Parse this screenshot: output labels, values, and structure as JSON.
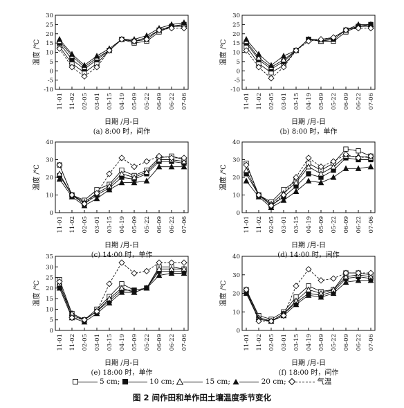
{
  "figure_title": "图 2   间作田和单作田土壤温度季节变化",
  "legend": [
    {
      "label": "5 cm;",
      "marker": "open-square"
    },
    {
      "label": "10 cm;",
      "marker": "filled-square"
    },
    {
      "label": "15 cm;",
      "marker": "open-triangle"
    },
    {
      "label": "20 cm;",
      "marker": "filled-triangle"
    },
    {
      "label": "气温",
      "marker": "open-diamond"
    }
  ],
  "chart_data": [
    {
      "type": "line",
      "caption": "(a)  8:00 时，间作",
      "xlabel": "日期 /月-日",
      "ylabel": "温度 /℃",
      "categories": [
        "11-01",
        "11-02",
        "02-05",
        "03-01",
        "03-15",
        "04-19",
        "05-09",
        "05-22",
        "06-09",
        "06-22",
        "07-06"
      ],
      "ylim": [
        -10,
        30
      ],
      "yticks": [
        -10,
        -5,
        0,
        5,
        10,
        15,
        20,
        25,
        30
      ],
      "series": [
        {
          "name": "5 cm",
          "values": [
            13,
            4,
            -1,
            4,
            11,
            17,
            15,
            16,
            21,
            24,
            24
          ]
        },
        {
          "name": "10 cm",
          "values": [
            15,
            6,
            1,
            6,
            11,
            17,
            16,
            17,
            22,
            24,
            25
          ]
        },
        {
          "name": "15 cm",
          "values": [
            16,
            8,
            2,
            7,
            11,
            17,
            16,
            18,
            22,
            24,
            25
          ]
        },
        {
          "name": "20 cm",
          "values": [
            17,
            9,
            3,
            8,
            12,
            17,
            17,
            19,
            23,
            25,
            26
          ]
        },
        {
          "name": "气温",
          "values": [
            12,
            2,
            -3,
            2,
            11,
            17,
            16,
            17,
            22,
            23,
            23
          ]
        }
      ]
    },
    {
      "type": "line",
      "caption": "(b)  8:00 时，单作",
      "xlabel": "日期 /月-日",
      "ylabel": "温度 /℃",
      "categories": [
        "11-01",
        "11-02",
        "02-05",
        "03-01",
        "03-15",
        "04-19",
        "05-09",
        "05-22",
        "06-09",
        "06-22",
        "07-06"
      ],
      "ylim": [
        -10,
        30
      ],
      "yticks": [
        -10,
        -5,
        0,
        5,
        10,
        15,
        20,
        25,
        30
      ],
      "series": [
        {
          "name": "5 cm",
          "values": [
            13,
            4,
            -1,
            3,
            11,
            17,
            16,
            16,
            21,
            24,
            24
          ]
        },
        {
          "name": "10 cm",
          "values": [
            15,
            6,
            1,
            5,
            11,
            17,
            16,
            17,
            22,
            24,
            25
          ]
        },
        {
          "name": "15 cm",
          "values": [
            16,
            7,
            2,
            6,
            11,
            17,
            16,
            18,
            22,
            24,
            25
          ]
        },
        {
          "name": "20 cm",
          "values": [
            17,
            9,
            3,
            8,
            11,
            17,
            17,
            18,
            22,
            25,
            25
          ]
        },
        {
          "name": "气温",
          "values": [
            11,
            2,
            -4,
            2,
            11,
            16,
            17,
            18,
            22,
            23,
            23
          ]
        }
      ]
    },
    {
      "type": "line",
      "caption": "(c)  14:00 时，单作",
      "xlabel": "日期 /月-日",
      "ylabel": "温度 /℃",
      "categories": [
        "11-01",
        "11-02",
        "02-05",
        "03-01",
        "03-15",
        "04-19",
        "05-09",
        "05-22",
        "06-09",
        "06-22",
        "07-06"
      ],
      "ylim": [
        0,
        40
      ],
      "yticks": [
        0,
        10,
        20,
        30,
        40
      ],
      "series": [
        {
          "name": "5 cm",
          "values": [
            27,
            10,
            7,
            13,
            16,
            24,
            21,
            24,
            31,
            32,
            30
          ]
        },
        {
          "name": "10 cm",
          "values": [
            21,
            10,
            5,
            10,
            14,
            20,
            19,
            22,
            29,
            29,
            28
          ]
        },
        {
          "name": "15 cm",
          "values": [
            22,
            10,
            6,
            11,
            15,
            22,
            20,
            23,
            30,
            30,
            29
          ]
        },
        {
          "name": "20 cm",
          "values": [
            19,
            9,
            4,
            8,
            13,
            17,
            17,
            18,
            26,
            26,
            26
          ]
        },
        {
          "name": "气温",
          "values": [
            27,
            10,
            5,
            11,
            22,
            31,
            26,
            29,
            32,
            31,
            31
          ]
        }
      ]
    },
    {
      "type": "line",
      "caption": "(d)  14:00 时，间作",
      "xlabel": "日期 /月-日",
      "ylabel": "温度 /℃",
      "categories": [
        "11-01",
        "11-02",
        "02-05",
        "03-01",
        "03-15",
        "04-19",
        "05-09",
        "05-22",
        "06-09",
        "06-22",
        "07-06"
      ],
      "ylim": [
        0,
        40
      ],
      "yticks": [
        0,
        10,
        20,
        30,
        40
      ],
      "series": [
        {
          "name": "5 cm",
          "values": [
            28,
            10,
            6,
            13,
            18,
            28,
            24,
            28,
            36,
            35,
            32
          ]
        },
        {
          "name": "10 cm",
          "values": [
            22,
            10,
            4,
            9,
            15,
            22,
            20,
            24,
            31,
            30,
            30
          ]
        },
        {
          "name": "15 cm",
          "values": [
            24,
            10,
            5,
            11,
            17,
            26,
            22,
            26,
            32,
            32,
            31
          ]
        },
        {
          "name": "20 cm",
          "values": [
            18,
            9,
            3,
            7,
            12,
            18,
            17,
            20,
            25,
            25,
            26
          ]
        },
        {
          "name": "气温",
          "values": [
            27,
            10,
            4,
            10,
            20,
            31,
            26,
            29,
            33,
            31,
            32
          ]
        }
      ]
    },
    {
      "type": "line",
      "caption": "(e)  18:00 时，单作",
      "xlabel": "日期 /月-日",
      "ylabel": "温度 /℃",
      "categories": [
        "11-01",
        "11-02",
        "02-05",
        "03-01",
        "03-15",
        "04-19",
        "05-09",
        "05-22",
        "06-09",
        "06-22",
        "07-06"
      ],
      "ylim": [
        0,
        35
      ],
      "yticks": [
        0,
        5,
        10,
        15,
        20,
        25,
        30,
        35
      ],
      "series": [
        {
          "name": "5 cm",
          "values": [
            24,
            8,
            5,
            10,
            16,
            22,
            19,
            20,
            30,
            30,
            29
          ]
        },
        {
          "name": "10 cm",
          "values": [
            21,
            7,
            5,
            9,
            14,
            19,
            19,
            20,
            28,
            28,
            28
          ]
        },
        {
          "name": "15 cm",
          "values": [
            22,
            8,
            5,
            9,
            15,
            20,
            18,
            20,
            29,
            29,
            29
          ]
        },
        {
          "name": "20 cm",
          "values": [
            20,
            6,
            4,
            8,
            13,
            18,
            18,
            20,
            26,
            27,
            27
          ]
        },
        {
          "name": "气温",
          "values": [
            23,
            6,
            5,
            9,
            22,
            32,
            27,
            28,
            32,
            32,
            32
          ]
        }
      ]
    },
    {
      "type": "line",
      "caption": "(f)  18:00 时，间作",
      "xlabel": "日期 /月-日",
      "ylabel": "温度 /℃",
      "categories": [
        "11-01",
        "11-02",
        "02-05",
        "03-01",
        "03-15",
        "04-19",
        "05-09",
        "05-22",
        "06-09",
        "06-22",
        "07-06"
      ],
      "ylim": [
        0,
        40
      ],
      "yticks": [
        0,
        10,
        20,
        30,
        40
      ],
      "series": [
        {
          "name": "5 cm",
          "values": [
            22,
            8,
            6,
            10,
            18,
            24,
            21,
            22,
            31,
            31,
            30
          ]
        },
        {
          "name": "10 cm",
          "values": [
            21,
            6,
            5,
            9,
            15,
            20,
            19,
            21,
            28,
            29,
            28
          ]
        },
        {
          "name": "15 cm",
          "values": [
            22,
            7,
            5,
            9,
            16,
            22,
            20,
            22,
            29,
            30,
            29
          ]
        },
        {
          "name": "20 cm",
          "values": [
            20,
            6,
            5,
            8,
            14,
            19,
            18,
            20,
            26,
            27,
            27
          ]
        },
        {
          "name": "气温",
          "values": [
            22,
            5,
            5,
            8,
            24,
            33,
            27,
            28,
            31,
            31,
            31
          ]
        }
      ]
    }
  ]
}
